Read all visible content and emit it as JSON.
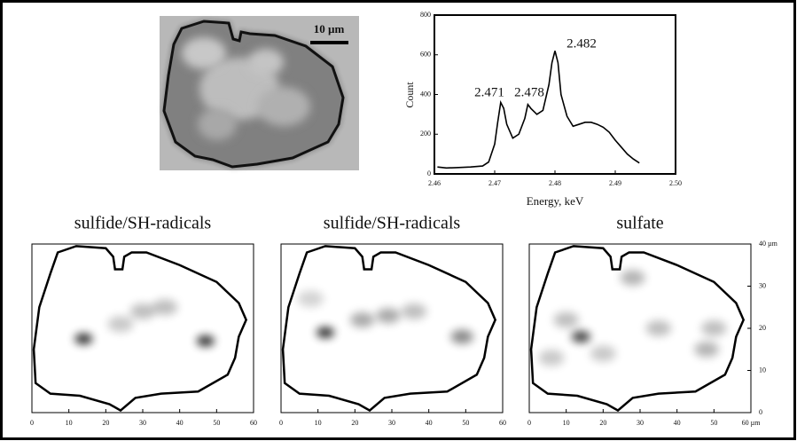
{
  "micrograph": {
    "scale_label": "10 µm"
  },
  "chart_data": [
    {
      "type": "line",
      "x_label": "Energy, keV",
      "y_label": "Count",
      "xlim": [
        2.46,
        2.5
      ],
      "xticks": [
        2.46,
        2.47,
        2.48,
        2.49,
        {
          "value": 2.5,
          "label": "2.50"
        }
      ],
      "ylim": [
        0,
        800
      ],
      "yticks": [
        0,
        200,
        400,
        600,
        800
      ],
      "peak_labels": [
        "2.471",
        "2.478",
        "2.482"
      ],
      "color": "#000000",
      "x": [
        2.4605,
        2.462,
        2.464,
        2.466,
        2.468,
        2.469,
        2.47,
        2.4705,
        2.471,
        2.4715,
        2.472,
        2.473,
        2.474,
        2.475,
        2.4755,
        2.476,
        2.477,
        2.478,
        2.479,
        2.4795,
        2.48,
        2.4805,
        2.481,
        2.482,
        2.483,
        2.484,
        2.485,
        2.486,
        2.487,
        2.488,
        2.489,
        2.49,
        2.491,
        2.492,
        2.493,
        2.494
      ],
      "values": [
        35,
        30,
        32,
        35,
        40,
        60,
        150,
        260,
        360,
        330,
        250,
        180,
        200,
        280,
        350,
        330,
        300,
        320,
        450,
        560,
        620,
        560,
        400,
        290,
        240,
        250,
        260,
        260,
        250,
        235,
        210,
        170,
        135,
        100,
        75,
        55
      ]
    },
    {
      "type": "map",
      "title": "sulfide/SH-radicals",
      "xlim": [
        0,
        60
      ],
      "ylim": [
        0,
        40
      ],
      "xticks": [
        0,
        10,
        20,
        30,
        40,
        50,
        60
      ],
      "spots": [
        {
          "x": 14,
          "y": 17.5,
          "intensity": 1.0
        },
        {
          "x": 47,
          "y": 17,
          "intensity": 1.0
        },
        {
          "x": 30,
          "y": 24,
          "intensity": 0.3
        },
        {
          "x": 24,
          "y": 21,
          "intensity": 0.25
        },
        {
          "x": 36,
          "y": 25,
          "intensity": 0.3
        }
      ]
    },
    {
      "type": "map",
      "title": "sulfide/SH-radicals",
      "xlim": [
        0,
        60
      ],
      "ylim": [
        0,
        40
      ],
      "xticks": [
        0,
        10,
        20,
        30,
        40,
        50,
        60
      ],
      "spots": [
        {
          "x": 12,
          "y": 19,
          "intensity": 1.0
        },
        {
          "x": 22,
          "y": 22,
          "intensity": 0.4
        },
        {
          "x": 29,
          "y": 23,
          "intensity": 0.4
        },
        {
          "x": 36,
          "y": 24,
          "intensity": 0.3
        },
        {
          "x": 49,
          "y": 18,
          "intensity": 0.55
        },
        {
          "x": 8,
          "y": 27,
          "intensity": 0.2
        }
      ]
    },
    {
      "type": "map",
      "title": "sulfate",
      "xlim": [
        0,
        60
      ],
      "ylim": [
        0,
        40
      ],
      "xticks": [
        0,
        10,
        20,
        30,
        40,
        50,
        {
          "value": 60,
          "label": "60 µm"
        }
      ],
      "yticks": [
        0,
        10,
        20,
        30,
        {
          "value": 40,
          "label": "40 µm"
        }
      ],
      "spots": [
        {
          "x": 14,
          "y": 18,
          "intensity": 0.9
        },
        {
          "x": 28,
          "y": 32,
          "intensity": 0.35
        },
        {
          "x": 10,
          "y": 22,
          "intensity": 0.3
        },
        {
          "x": 35,
          "y": 20,
          "intensity": 0.3
        },
        {
          "x": 48,
          "y": 15,
          "intensity": 0.35
        },
        {
          "x": 50,
          "y": 20,
          "intensity": 0.3
        },
        {
          "x": 20,
          "y": 14,
          "intensity": 0.25
        },
        {
          "x": 6,
          "y": 13,
          "intensity": 0.25
        }
      ]
    }
  ]
}
